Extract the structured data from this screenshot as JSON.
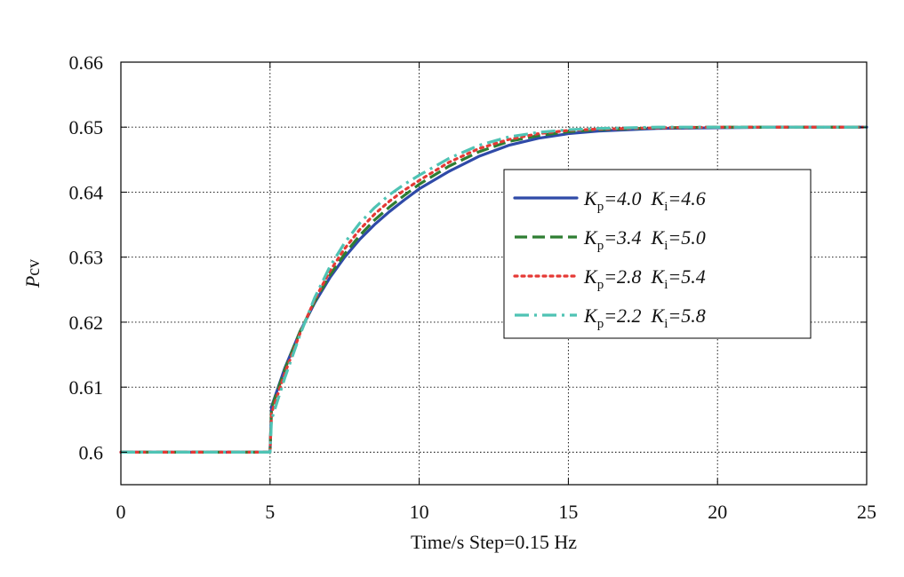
{
  "chart_data": {
    "type": "line",
    "xlabel": "Time/s  Step=0.15 Hz",
    "ylabel_main": "P",
    "ylabel_sub": "cv",
    "xlim": [
      0,
      25
    ],
    "ylim": [
      0.595,
      0.66
    ],
    "xticks": [
      0,
      5,
      10,
      15,
      20,
      25
    ],
    "xtick_labels": [
      "0",
      "5",
      "10",
      "15",
      "20",
      "25"
    ],
    "yticks": [
      0.6,
      0.61,
      0.62,
      0.63,
      0.64,
      0.65,
      0.66
    ],
    "ytick_labels": [
      "0.6",
      "0.61",
      "0.62",
      "0.63",
      "0.64",
      "0.65",
      "0.66"
    ],
    "grid": true,
    "legend_position": "right-center",
    "series": [
      {
        "legend": [
          "K",
          "p",
          "=4.0  ",
          "K",
          "i",
          "=4.6"
        ],
        "color": "#2f4aa8",
        "dash": "solid",
        "x": [
          0,
          5,
          5.05,
          5.5,
          6,
          6.5,
          7,
          7.5,
          8,
          8.5,
          9,
          9.5,
          10,
          11,
          12,
          13,
          14,
          15,
          16,
          18,
          20,
          22,
          25
        ],
        "y": [
          0.6,
          0.6,
          0.607,
          0.613,
          0.6185,
          0.623,
          0.6268,
          0.63,
          0.6327,
          0.635,
          0.637,
          0.6388,
          0.6405,
          0.6432,
          0.6455,
          0.6472,
          0.6483,
          0.649,
          0.6494,
          0.6498,
          0.6499,
          0.65,
          0.65
        ]
      },
      {
        "legend": [
          "K",
          "p",
          "=3.4  ",
          "K",
          "i",
          "=5.0"
        ],
        "color": "#2e7d32",
        "dash": "dashed",
        "x": [
          0,
          5,
          5.05,
          5.5,
          6,
          6.5,
          7,
          7.5,
          8,
          8.5,
          9,
          9.5,
          10,
          11,
          12,
          13,
          14,
          15,
          16,
          18,
          20,
          22,
          25
        ],
        "y": [
          0.6,
          0.6,
          0.6068,
          0.6128,
          0.6185,
          0.6232,
          0.6272,
          0.6305,
          0.6333,
          0.6357,
          0.6377,
          0.6395,
          0.6412,
          0.644,
          0.6462,
          0.6478,
          0.6487,
          0.6493,
          0.6496,
          0.6499,
          0.65,
          0.65,
          0.65
        ]
      },
      {
        "legend": [
          "K",
          "p",
          "=2.8  ",
          "K",
          "i",
          "=5.4"
        ],
        "color": "#e53935",
        "dash": "dotted",
        "x": [
          0,
          5,
          5.05,
          5.5,
          6,
          6.5,
          7,
          7.5,
          8,
          8.5,
          9,
          9.5,
          10,
          11,
          12,
          13,
          14,
          15,
          16,
          18,
          20,
          22,
          25
        ],
        "y": [
          0.6,
          0.6,
          0.606,
          0.6122,
          0.6182,
          0.6235,
          0.6278,
          0.6313,
          0.6342,
          0.6366,
          0.6386,
          0.6403,
          0.6418,
          0.6446,
          0.6467,
          0.6481,
          0.649,
          0.6495,
          0.6497,
          0.6499,
          0.65,
          0.65,
          0.65
        ]
      },
      {
        "legend": [
          "K",
          "p",
          "=2.2  ",
          "K",
          "i",
          "=5.8"
        ],
        "color": "#4fc3b4",
        "dash": "dashdot",
        "x": [
          0,
          5,
          5.05,
          5.5,
          6,
          6.5,
          7,
          7.5,
          8,
          8.5,
          9,
          9.5,
          10,
          11,
          12,
          13,
          14,
          15,
          16,
          18,
          20,
          22,
          25
        ],
        "y": [
          0.6,
          0.6,
          0.605,
          0.6115,
          0.618,
          0.6238,
          0.6285,
          0.6322,
          0.6352,
          0.6376,
          0.6396,
          0.6412,
          0.6426,
          0.6452,
          0.6472,
          0.6485,
          0.6492,
          0.6496,
          0.6498,
          0.65,
          0.65,
          0.65,
          0.65
        ]
      }
    ]
  }
}
